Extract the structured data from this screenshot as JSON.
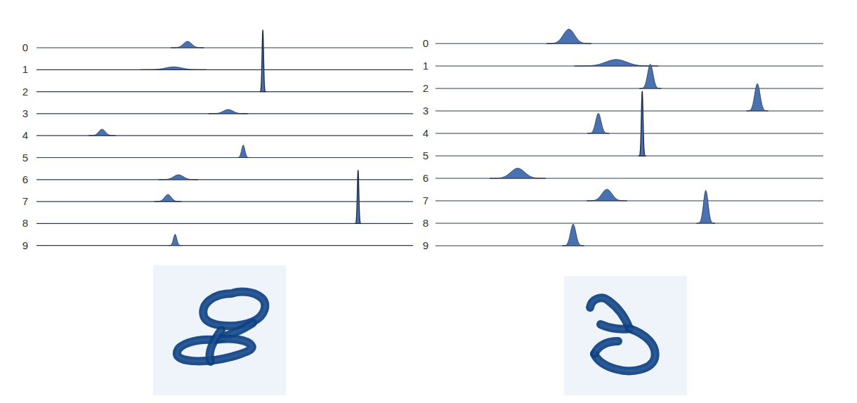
{
  "chart_data": [
    {
      "type": "ridgeline",
      "categories": [
        "0",
        "1",
        "2",
        "3",
        "4",
        "5",
        "6",
        "7",
        "8",
        "9"
      ],
      "values": [
        40.1,
        36.4,
        60.1,
        50.9,
        17.4,
        54.9,
        37.7,
        34.9,
        85.4,
        36.8
      ],
      "spreads": [
        1.1,
        2.2,
        0.2,
        1.3,
        0.9,
        0.45,
        1.3,
        0.9,
        0.2,
        0.45
      ],
      "heights": [
        0.29,
        0.13,
        2.8,
        0.19,
        0.29,
        0.57,
        0.22,
        0.32,
        2.42,
        0.51
      ],
      "xlim": [
        0,
        100
      ],
      "color": "#4a72b0",
      "tick_labels": "y"
    },
    {
      "type": "ridgeline",
      "categories": [
        "0",
        "1",
        "2",
        "3",
        "4",
        "5",
        "6",
        "7",
        "8",
        "9"
      ],
      "values": [
        34.4,
        46.6,
        55.4,
        83.0,
        42.0,
        53.3,
        21.2,
        44.2,
        69.7,
        35.5
      ],
      "spreads": [
        1.45,
        2.7,
        0.7,
        0.7,
        0.7,
        0.22,
        1.8,
        1.3,
        0.6,
        0.7
      ],
      "heights": [
        0.64,
        0.29,
        1.08,
        1.21,
        0.89,
        2.87,
        0.45,
        0.51,
        1.46,
        0.96
      ],
      "xlim": [
        0,
        100
      ],
      "color": "#4a72b0",
      "tick_labels": "y"
    }
  ]
}
